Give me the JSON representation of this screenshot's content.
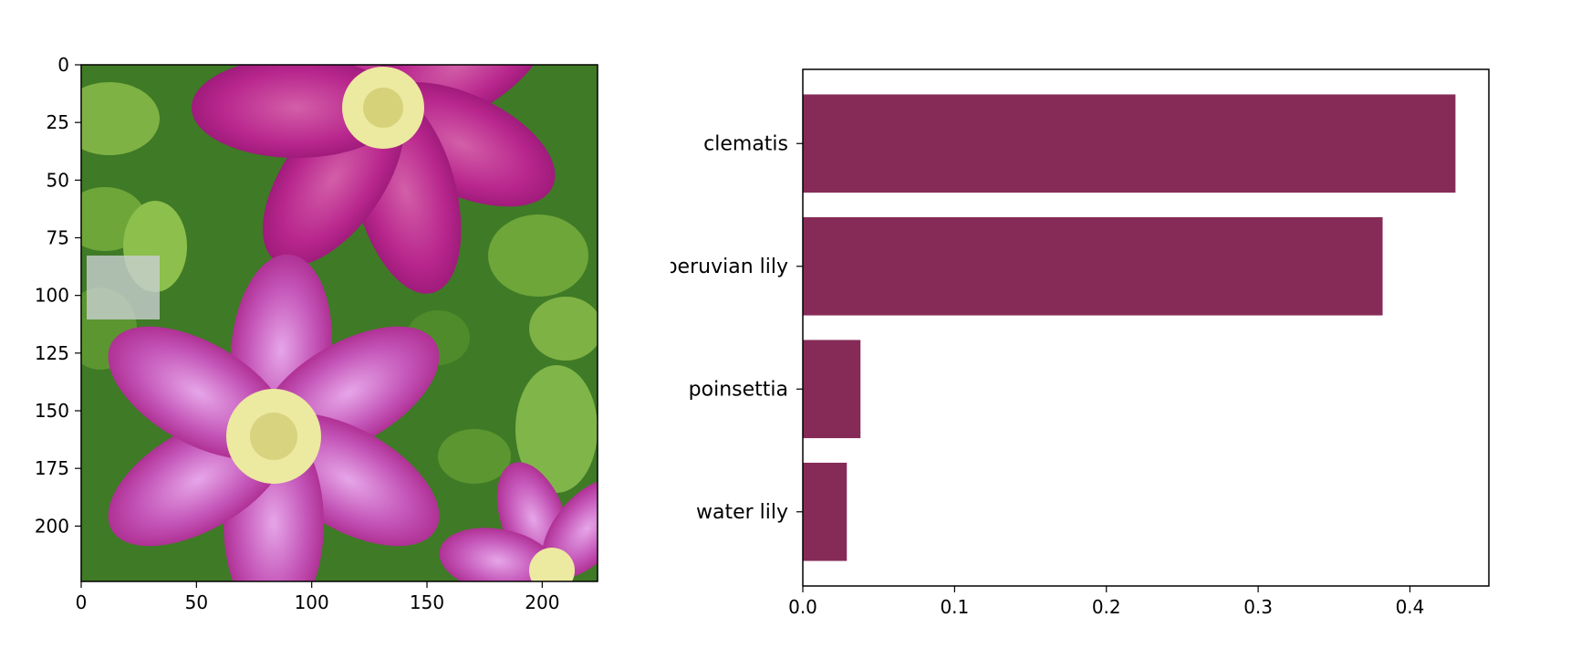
{
  "chart_data": [
    {
      "type": "image",
      "image": {
        "subject": "purple-pink clematis flowers with green leaves"
      },
      "xlim": [
        0,
        224
      ],
      "ylim": [
        224,
        0
      ],
      "xticks": [
        "0",
        "50",
        "100",
        "150",
        "200"
      ],
      "yticks": [
        "0",
        "25",
        "50",
        "75",
        "100",
        "125",
        "150",
        "175",
        "200"
      ],
      "title": "",
      "xlabel": "",
      "ylabel": ""
    },
    {
      "type": "bar",
      "orientation": "horizontal",
      "categories": [
        "clematis",
        "peruvian lily",
        "poinsettia",
        "water lily"
      ],
      "values": [
        0.43,
        0.382,
        0.038,
        0.029
      ],
      "xlim": [
        0,
        0.452
      ],
      "xticks": [
        "0.0",
        "0.1",
        "0.2",
        "0.3",
        "0.4"
      ],
      "bar_color": "#862b58",
      "title": "",
      "xlabel": "",
      "ylabel": ""
    }
  ],
  "colors": {
    "bar": "#862b58",
    "leaf_dark": "#3f7a26",
    "leaf_light": "#7fb244",
    "petal_magenta": "#b5258f",
    "petal_light": "#cf7fd6",
    "stamen": "#ece9a0"
  }
}
